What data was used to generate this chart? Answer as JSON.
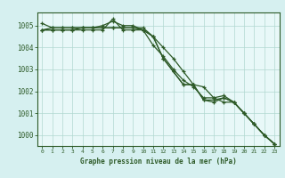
{
  "title": "Graphe pression niveau de la mer (hPa)",
  "bg_color": "#d6f0f0",
  "plot_bg_color": "#e8f8f8",
  "grid_color": "#b0d8d0",
  "line_color": "#2d5a27",
  "border_color": "#2d5a27",
  "x_labels": [
    "0",
    "1",
    "2",
    "3",
    "4",
    "5",
    "6",
    "7",
    "8",
    "9",
    "10",
    "11",
    "12",
    "13",
    "14",
    "15",
    "16",
    "17",
    "18",
    "19",
    "20",
    "21",
    "22",
    "23"
  ],
  "ylim": [
    999.5,
    1005.6
  ],
  "yticks": [
    1000,
    1001,
    1002,
    1003,
    1004,
    1005
  ],
  "series": [
    [
      1004.8,
      1004.8,
      1004.8,
      1004.8,
      1004.9,
      1004.9,
      1004.9,
      1004.9,
      1004.9,
      1004.9,
      1004.8,
      1004.5,
      1004.0,
      1003.5,
      1002.9,
      1002.3,
      1002.2,
      1001.7,
      1001.5,
      1001.5,
      1001.0,
      1000.5,
      1000.0,
      999.6
    ],
    [
      1005.1,
      1004.9,
      1004.9,
      1004.9,
      1004.9,
      1004.9,
      1005.0,
      1005.2,
      1005.0,
      1005.0,
      1004.8,
      1004.1,
      1003.6,
      1003.0,
      1002.5,
      1002.2,
      1001.7,
      1001.7,
      1001.8,
      1001.5,
      1001.0,
      1000.5,
      1000.0,
      999.6
    ],
    [
      1004.8,
      1004.8,
      1004.8,
      1004.8,
      1004.8,
      1004.8,
      1004.8,
      1005.3,
      1004.8,
      1004.8,
      1004.8,
      1004.5,
      1003.5,
      1002.9,
      1002.3,
      1002.3,
      1001.6,
      1001.6,
      1001.7,
      1001.5,
      1001.0,
      1000.5,
      1000.0,
      999.6
    ],
    [
      1004.8,
      1004.9,
      1004.9,
      1004.9,
      1004.9,
      1004.9,
      1004.9,
      1004.9,
      1004.9,
      1004.9,
      1004.9,
      1004.5,
      1003.5,
      1002.9,
      1002.3,
      1002.3,
      1001.6,
      1001.5,
      1001.7,
      1001.5,
      1001.0,
      1000.5,
      1000.0,
      999.6
    ]
  ]
}
